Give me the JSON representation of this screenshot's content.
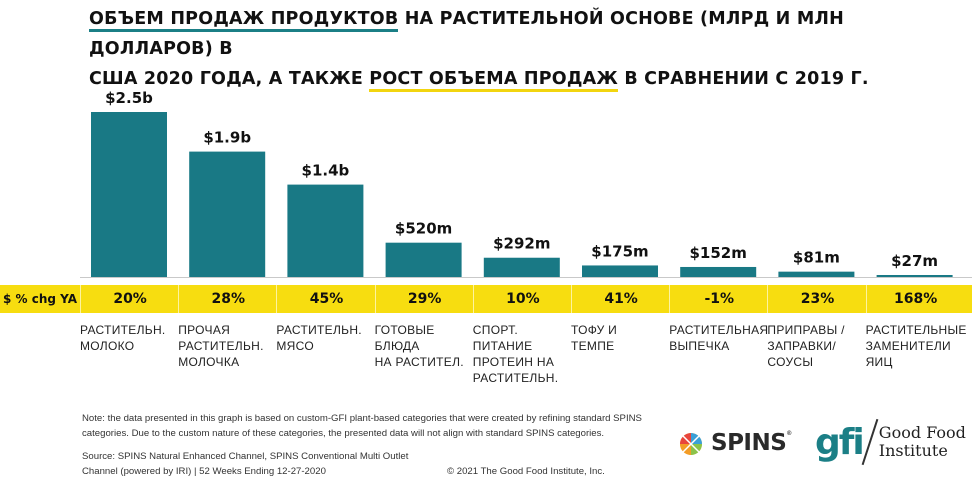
{
  "title": {
    "line1_underlined": "ОБЪЕМ ПРОДАЖ ПРОДУКТОВ",
    "line1_rest": " НА РАСТИТЕЛЬНОЙ ОСНОВЕ (МЛРД И МЛН ДОЛЛАРОВ) В",
    "line2_start": "США 2020 ГОДА, А ТАКЖЕ ",
    "line2_underlined": "РОСТ ОБЪЕМА ПРОДАЖ",
    "line2_rest": " В СРАВНЕНИИ С 2019 Г."
  },
  "colors": {
    "bar": "#197985",
    "band": "#f7dd10",
    "teal_underline": "#1b7f86",
    "yellow_underline": "#f2d50f"
  },
  "chart_data": {
    "type": "bar",
    "title": "ОБЪЕМ ПРОДАЖ ПРОДУКТОВ НА РАСТИТЕЛЬНОЙ ОСНОВЕ (МЛРД И МЛН ДОЛЛАРОВ) В США 2020 ГОДА, А ТАКЖЕ РОСТ ОБЪЕМА ПРОДАЖ В СРАВНЕНИИ С 2019 Г.",
    "xlabel": "",
    "ylabel": "",
    "unit": "USD millions",
    "ylim": [
      0,
      2500
    ],
    "grid": false,
    "categories": [
      "РАСТИТЕЛЬН.\nМОЛОКО",
      "ПРОЧАЯ\nРАСТИТЕЛЬН.\nМОЛОЧКА",
      "РАСТИТЕЛЬН.\nМЯСО",
      "ГОТОВЫЕ\nБЛЮДА\nНА РАСТИТЕЛ.",
      "СПОРТ. ПИТАНИЕ\nПРОТЕИН НА\nРАСТИТЕЛЬН.",
      "ТОФУ И\nТЕМПЕ",
      "РАСТИТЕЛЬНАЯ\nВЫПЕЧКА",
      "ПРИПРАВЫ /\nЗАПРАВКИ/\nСОУСЫ",
      "РАСТИТЕЛЬНЫЕ\nЗАМЕНИТЕЛИ\nЯИЦ"
    ],
    "values": [
      2500,
      1900,
      1400,
      520,
      292,
      175,
      152,
      81,
      27
    ],
    "value_labels": [
      "$2.5b",
      "$1.9b",
      "$1.4b",
      "$520m",
      "$292m",
      "$175m",
      "$152m",
      "$81m",
      "$27m"
    ],
    "change_row_label": "$ % chg YA",
    "pct_change": [
      "20%",
      "28%",
      "45%",
      "29%",
      "10%",
      "41%",
      "-1%",
      "23%",
      "168%"
    ]
  },
  "footer": {
    "note": "Note: the data presented in this graph is based on custom-GFI plant-based categories that were created by refining standard SPINS categories. Due to the custom nature of these categories, the presented data will not align with standard SPINS categories.",
    "source_line1": "Source: SPINS Natural Enhanced Channel, SPINS Conventional Multi Outlet",
    "source_line2": "Channel (powered by IRI) | 52 Weeks Ending 12-27-2020",
    "copyright": "© 2021 The Good Food Institute, Inc."
  },
  "logos": {
    "spins": "SPINS",
    "spins_reg": "®",
    "gfi_mark": "gfi",
    "gfi_line1": "Good Food",
    "gfi_line2": "Institute"
  }
}
